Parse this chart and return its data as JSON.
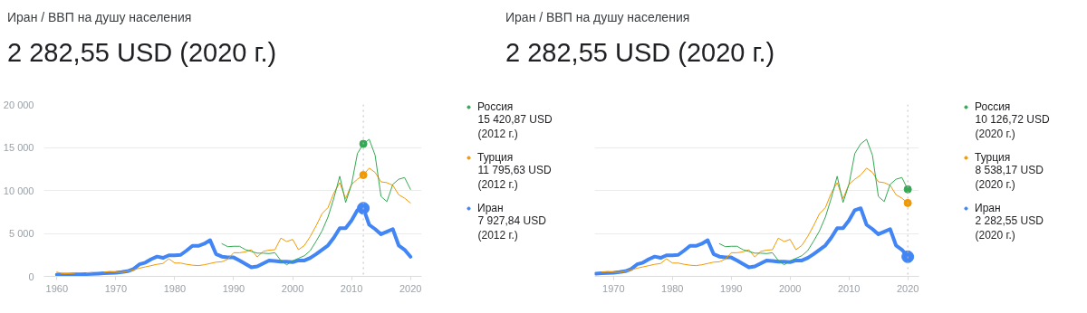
{
  "chart_data": [
    {
      "type": "line",
      "title": "Иран / ВВП на душу населения",
      "subtitle": "2 282,55 USD (2020 г.)",
      "xlim": [
        1957.8,
        2021.9
      ],
      "xticks": [
        1960,
        1970,
        1980,
        1990,
        2000,
        2010,
        2020
      ],
      "ylim": [
        0,
        20000
      ],
      "yticks": [
        {
          "value": 0,
          "label": "0"
        },
        {
          "value": 5000,
          "label": "5 000"
        },
        {
          "value": 10000,
          "label": "10 000"
        },
        {
          "value": 15000,
          "label": "15 000"
        },
        {
          "value": 20000,
          "label": "20 000"
        }
      ],
      "grid": "y",
      "legend": "right",
      "ref_lines": [
        {
          "axis": "x",
          "value": 2012,
          "line_style": "dotted",
          "color": "#bdbdbd"
        }
      ],
      "annotations": [
        "15 420,87 USD",
        "(2012 г.)",
        "11 795,63 USD",
        "(2012 г.)",
        "7 927,84 USD",
        "(2012 г.)"
      ],
      "series": [
        {
          "name": "Россия",
          "color": "#34a853",
          "x": [
            1988,
            1989,
            1990,
            1991,
            1992,
            1993,
            1994,
            1995,
            1996,
            1997,
            1998,
            1999,
            2000,
            2001,
            2002,
            2003,
            2004,
            2005,
            2006,
            2007,
            2008,
            2009,
            2010,
            2011,
            2012,
            2013,
            2014,
            2015,
            2016,
            2017,
            2018,
            2019,
            2020
          ],
          "values": [
            3800,
            3450,
            3500,
            3500,
            3100,
            2900,
            2700,
            2700,
            2650,
            2750,
            1850,
            1350,
            1800,
            2100,
            2400,
            3000,
            4100,
            5300,
            6900,
            9100,
            11650,
            8600,
            10700,
            14300,
            15420.87,
            15950,
            14100,
            9300,
            8700,
            10700,
            11300,
            11500,
            10126.72
          ]
        },
        {
          "name": "Турция",
          "color": "#f29900",
          "x": [
            1960,
            1961,
            1962,
            1963,
            1964,
            1965,
            1966,
            1967,
            1968,
            1969,
            1970,
            1971,
            1972,
            1973,
            1974,
            1975,
            1976,
            1977,
            1978,
            1979,
            1980,
            1981,
            1982,
            1983,
            1984,
            1985,
            1986,
            1987,
            1988,
            1989,
            1990,
            1991,
            1992,
            1993,
            1994,
            1995,
            1996,
            1997,
            1998,
            1999,
            2000,
            2001,
            2002,
            2003,
            2004,
            2005,
            2006,
            2007,
            2008,
            2009,
            2010,
            2011,
            2012,
            2013,
            2014,
            2015,
            2016,
            2017,
            2018,
            2019,
            2020
          ],
          "values": [
            500,
            300,
            320,
            350,
            null,
            400,
            450,
            null,
            500,
            550,
            500,
            450,
            600,
            750,
            950,
            1100,
            1250,
            1400,
            1500,
            2050,
            1550,
            1550,
            1400,
            1300,
            1250,
            1350,
            1500,
            1650,
            1700,
            2000,
            2750,
            2750,
            2850,
            3100,
            2250,
            2900,
            3050,
            3100,
            4450,
            4050,
            4300,
            3100,
            3600,
            4650,
            5900,
            7300,
            8000,
            9700,
            10900,
            9050,
            10700,
            11300,
            11795.63,
            12600,
            12100,
            11000,
            10900,
            10600,
            9500,
            9100,
            8538.17
          ]
        },
        {
          "name": "Иран",
          "color": "#4285f4",
          "x": [
            1960,
            1961,
            1962,
            1963,
            1964,
            1965,
            1966,
            1967,
            1968,
            1969,
            1970,
            1971,
            1972,
            1973,
            1974,
            1975,
            1976,
            1977,
            1978,
            1979,
            1980,
            1981,
            1982,
            1983,
            1984,
            1985,
            1986,
            1987,
            1988,
            1989,
            1990,
            1991,
            1992,
            1993,
            1994,
            1995,
            1996,
            1997,
            1998,
            1999,
            2000,
            2001,
            2002,
            2003,
            2004,
            2005,
            2006,
            2007,
            2008,
            2009,
            2010,
            2011,
            2012,
            2013,
            2014,
            2015,
            2016,
            2017,
            2018,
            2019,
            2020
          ],
          "values": [
            200,
            210,
            220,
            230,
            240,
            260,
            290,
            320,
            360,
            400,
            430,
            500,
            600,
            850,
            1400,
            1600,
            2000,
            2300,
            2150,
            2450,
            2450,
            2500,
            3000,
            3550,
            3550,
            3800,
            4200,
            2600,
            2300,
            2200,
            2200,
            1850,
            1450,
            1050,
            1150,
            1500,
            1850,
            1800,
            1700,
            1700,
            1650,
            1850,
            1850,
            2150,
            2600,
            3100,
            3600,
            4500,
            5600,
            5600,
            6500,
            7700,
            7927.84,
            6000,
            5500,
            4900,
            5200,
            5500,
            3600,
            3100,
            2282.55
          ]
        }
      ]
    },
    {
      "type": "line",
      "title": "Иран / ВВП на душу населения",
      "subtitle": "2 282,55 USD (2020 г.)",
      "xlim": [
        1966.8,
        2021.9
      ],
      "xticks": [
        1970,
        1980,
        1990,
        2000,
        2010,
        2020
      ],
      "ylim": [
        0,
        20000
      ],
      "yticks": [
        0,
        5000,
        10000,
        15000,
        20000
      ],
      "tick_labels": "x",
      "grid": "y",
      "legend": "right",
      "ref_lines": [
        {
          "axis": "x",
          "value": 2020,
          "line_style": "dotted",
          "color": "#bdbdbd"
        }
      ],
      "annotations": [
        "10 126,72 USD",
        "(2020 г.)",
        "8 538,17 USD",
        "(2020 г.)",
        "2 282,55 USD",
        "(2020 г.)"
      ],
      "series": [
        {
          "name": "Россия",
          "color": "#34a853",
          "x": [
            1988,
            1989,
            1990,
            1991,
            1992,
            1993,
            1994,
            1995,
            1996,
            1997,
            1998,
            1999,
            2000,
            2001,
            2002,
            2003,
            2004,
            2005,
            2006,
            2007,
            2008,
            2009,
            2010,
            2011,
            2012,
            2013,
            2014,
            2015,
            2016,
            2017,
            2018,
            2019,
            2020
          ],
          "values": [
            3800,
            3450,
            3500,
            3500,
            3100,
            2900,
            2700,
            2700,
            2650,
            2750,
            1850,
            1350,
            1800,
            2100,
            2400,
            3000,
            4100,
            5300,
            6900,
            9100,
            11650,
            8600,
            10700,
            14300,
            15420.87,
            15950,
            14100,
            9300,
            8700,
            10700,
            11300,
            11500,
            10126.72
          ]
        },
        {
          "name": "Турция",
          "color": "#f29900",
          "x": [
            1968,
            1969,
            1970,
            1971,
            1972,
            1973,
            1974,
            1975,
            1976,
            1977,
            1978,
            1979,
            1980,
            1981,
            1982,
            1983,
            1984,
            1985,
            1986,
            1987,
            1988,
            1989,
            1990,
            1991,
            1992,
            1993,
            1994,
            1995,
            1996,
            1997,
            1998,
            1999,
            2000,
            2001,
            2002,
            2003,
            2004,
            2005,
            2006,
            2007,
            2008,
            2009,
            2010,
            2011,
            2012,
            2013,
            2014,
            2015,
            2016,
            2017,
            2018,
            2019,
            2020
          ],
          "values": [
            500,
            550,
            500,
            450,
            600,
            750,
            950,
            1100,
            1250,
            1400,
            1500,
            2050,
            1550,
            1550,
            1400,
            1300,
            1250,
            1350,
            1500,
            1650,
            1700,
            2000,
            2750,
            2750,
            2850,
            3100,
            2250,
            2900,
            3050,
            3100,
            4450,
            4050,
            4300,
            3100,
            3600,
            4650,
            5900,
            7300,
            8000,
            9700,
            10900,
            9050,
            10700,
            11300,
            11795.63,
            12600,
            12100,
            11000,
            10900,
            10600,
            9500,
            9100,
            8538.17
          ]
        },
        {
          "name": "Иран",
          "color": "#4285f4",
          "x": [
            1967,
            1968,
            1969,
            1970,
            1971,
            1972,
            1973,
            1974,
            1975,
            1976,
            1977,
            1978,
            1979,
            1980,
            1981,
            1982,
            1983,
            1984,
            1985,
            1986,
            1987,
            1988,
            1989,
            1990,
            1991,
            1992,
            1993,
            1994,
            1995,
            1996,
            1997,
            1998,
            1999,
            2000,
            2001,
            2002,
            2003,
            2004,
            2005,
            2006,
            2007,
            2008,
            2009,
            2010,
            2011,
            2012,
            2013,
            2014,
            2015,
            2016,
            2017,
            2018,
            2019,
            2020
          ],
          "values": [
            320,
            360,
            400,
            430,
            500,
            600,
            850,
            1400,
            1600,
            2000,
            2300,
            2150,
            2450,
            2450,
            2500,
            3000,
            3550,
            3550,
            3800,
            4200,
            2600,
            2300,
            2200,
            2200,
            1850,
            1450,
            1050,
            1150,
            1500,
            1850,
            1800,
            1700,
            1700,
            1650,
            1850,
            1850,
            2150,
            2600,
            3100,
            3600,
            4500,
            5600,
            5600,
            6500,
            7700,
            7927.84,
            6000,
            5500,
            4900,
            5200,
            5500,
            3600,
            3100,
            2282.55
          ]
        }
      ]
    }
  ]
}
